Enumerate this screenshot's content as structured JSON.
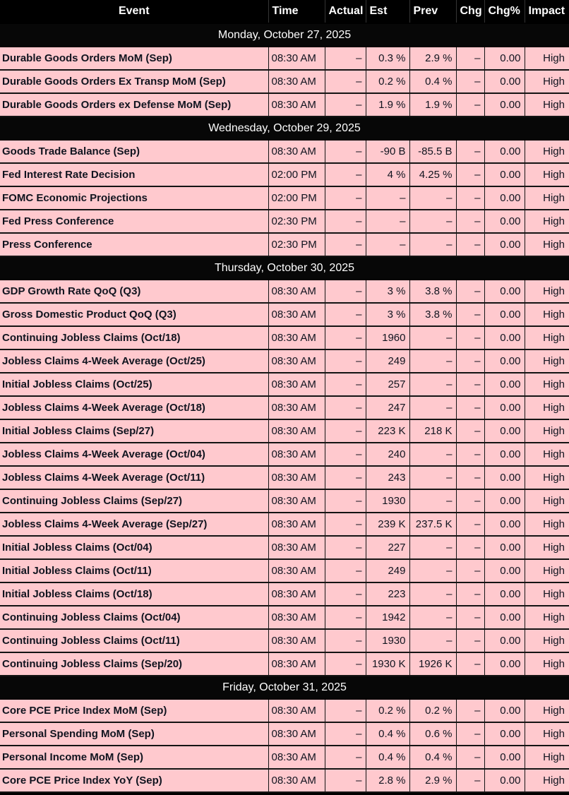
{
  "colors": {
    "header_bg": "#000000",
    "date_band_bg": "#070707",
    "row_bg": "#ffc9ce",
    "row_text": "#10141f",
    "header_text": "#ffffff"
  },
  "table": {
    "columns": [
      {
        "key": "event",
        "label": "Event"
      },
      {
        "key": "time",
        "label": "Time"
      },
      {
        "key": "actual",
        "label": "Actual"
      },
      {
        "key": "est",
        "label": "Est"
      },
      {
        "key": "prev",
        "label": "Prev"
      },
      {
        "key": "chg",
        "label": "Chg"
      },
      {
        "key": "chgpct",
        "label": "Chg%"
      },
      {
        "key": "impact",
        "label": "Impact"
      }
    ],
    "groups": [
      {
        "date": "Monday, October 27, 2025",
        "rows": [
          {
            "event": "Durable Goods Orders MoM (Sep)",
            "time": "08:30 AM",
            "actual": "–",
            "est": "0.3 %",
            "prev": "2.9 %",
            "chg": "–",
            "chgpct": "0.00",
            "impact": "High"
          },
          {
            "event": "Durable Goods Orders Ex Transp MoM (Sep)",
            "time": "08:30 AM",
            "actual": "–",
            "est": "0.2 %",
            "prev": "0.4 %",
            "chg": "–",
            "chgpct": "0.00",
            "impact": "High"
          },
          {
            "event": "Durable Goods Orders ex Defense MoM (Sep)",
            "time": "08:30 AM",
            "actual": "–",
            "est": "1.9 %",
            "prev": "1.9 %",
            "chg": "–",
            "chgpct": "0.00",
            "impact": "High"
          }
        ]
      },
      {
        "date": "Wednesday, October 29, 2025",
        "rows": [
          {
            "event": "Goods Trade Balance (Sep)",
            "time": "08:30 AM",
            "actual": "–",
            "est": "-90 B",
            "prev": "-85.5 B",
            "chg": "–",
            "chgpct": "0.00",
            "impact": "High"
          },
          {
            "event": "Fed Interest Rate Decision",
            "time": "02:00 PM",
            "actual": "–",
            "est": "4 %",
            "prev": "4.25 %",
            "chg": "–",
            "chgpct": "0.00",
            "impact": "High"
          },
          {
            "event": "FOMC Economic Projections",
            "time": "02:00 PM",
            "actual": "–",
            "est": "–",
            "prev": "–",
            "chg": "–",
            "chgpct": "0.00",
            "impact": "High"
          },
          {
            "event": "Fed Press Conference",
            "time": "02:30 PM",
            "actual": "–",
            "est": "–",
            "prev": "–",
            "chg": "–",
            "chgpct": "0.00",
            "impact": "High"
          },
          {
            "event": "Press Conference",
            "time": "02:30 PM",
            "actual": "–",
            "est": "–",
            "prev": "–",
            "chg": "–",
            "chgpct": "0.00",
            "impact": "High"
          }
        ]
      },
      {
        "date": "Thursday, October 30, 2025",
        "rows": [
          {
            "event": "GDP Growth Rate QoQ (Q3)",
            "time": "08:30 AM",
            "actual": "–",
            "est": "3 %",
            "prev": "3.8 %",
            "chg": "–",
            "chgpct": "0.00",
            "impact": "High"
          },
          {
            "event": "Gross Domestic Product QoQ (Q3)",
            "time": "08:30 AM",
            "actual": "–",
            "est": "3 %",
            "prev": "3.8 %",
            "chg": "–",
            "chgpct": "0.00",
            "impact": "High"
          },
          {
            "event": "Continuing Jobless Claims (Oct/18)",
            "time": "08:30 AM",
            "actual": "–",
            "est": "1960",
            "prev": "–",
            "chg": "–",
            "chgpct": "0.00",
            "impact": "High"
          },
          {
            "event": "Jobless Claims 4-Week Average (Oct/25)",
            "time": "08:30 AM",
            "actual": "–",
            "est": "249",
            "prev": "–",
            "chg": "–",
            "chgpct": "0.00",
            "impact": "High"
          },
          {
            "event": "Initial Jobless Claims (Oct/25)",
            "time": "08:30 AM",
            "actual": "–",
            "est": "257",
            "prev": "–",
            "chg": "–",
            "chgpct": "0.00",
            "impact": "High"
          },
          {
            "event": "Jobless Claims 4-Week Average (Oct/18)",
            "time": "08:30 AM",
            "actual": "–",
            "est": "247",
            "prev": "–",
            "chg": "–",
            "chgpct": "0.00",
            "impact": "High"
          },
          {
            "event": "Initial Jobless Claims (Sep/27)",
            "time": "08:30 AM",
            "actual": "–",
            "est": "223 K",
            "prev": "218 K",
            "chg": "–",
            "chgpct": "0.00",
            "impact": "High"
          },
          {
            "event": "Jobless Claims 4-Week Average (Oct/04)",
            "time": "08:30 AM",
            "actual": "–",
            "est": "240",
            "prev": "–",
            "chg": "–",
            "chgpct": "0.00",
            "impact": "High"
          },
          {
            "event": "Jobless Claims 4-Week Average (Oct/11)",
            "time": "08:30 AM",
            "actual": "–",
            "est": "243",
            "prev": "–",
            "chg": "–",
            "chgpct": "0.00",
            "impact": "High"
          },
          {
            "event": "Continuing Jobless Claims (Sep/27)",
            "time": "08:30 AM",
            "actual": "–",
            "est": "1930",
            "prev": "–",
            "chg": "–",
            "chgpct": "0.00",
            "impact": "High"
          },
          {
            "event": "Jobless Claims 4-Week Average (Sep/27)",
            "time": "08:30 AM",
            "actual": "–",
            "est": "239 K",
            "prev": "237.5 K",
            "chg": "–",
            "chgpct": "0.00",
            "impact": "High"
          },
          {
            "event": "Initial Jobless Claims (Oct/04)",
            "time": "08:30 AM",
            "actual": "–",
            "est": "227",
            "prev": "–",
            "chg": "–",
            "chgpct": "0.00",
            "impact": "High"
          },
          {
            "event": "Initial Jobless Claims (Oct/11)",
            "time": "08:30 AM",
            "actual": "–",
            "est": "249",
            "prev": "–",
            "chg": "–",
            "chgpct": "0.00",
            "impact": "High"
          },
          {
            "event": "Initial Jobless Claims (Oct/18)",
            "time": "08:30 AM",
            "actual": "–",
            "est": "223",
            "prev": "–",
            "chg": "–",
            "chgpct": "0.00",
            "impact": "High"
          },
          {
            "event": "Continuing Jobless Claims (Oct/04)",
            "time": "08:30 AM",
            "actual": "–",
            "est": "1942",
            "prev": "–",
            "chg": "–",
            "chgpct": "0.00",
            "impact": "High"
          },
          {
            "event": "Continuing Jobless Claims (Oct/11)",
            "time": "08:30 AM",
            "actual": "–",
            "est": "1930",
            "prev": "–",
            "chg": "–",
            "chgpct": "0.00",
            "impact": "High"
          },
          {
            "event": "Continuing Jobless Claims (Sep/20)",
            "time": "08:30 AM",
            "actual": "–",
            "est": "1930 K",
            "prev": "1926 K",
            "chg": "–",
            "chgpct": "0.00",
            "impact": "High"
          }
        ]
      },
      {
        "date": "Friday, October 31, 2025",
        "rows": [
          {
            "event": "Core PCE Price Index MoM (Sep)",
            "time": "08:30 AM",
            "actual": "–",
            "est": "0.2 %",
            "prev": "0.2 %",
            "chg": "–",
            "chgpct": "0.00",
            "impact": "High"
          },
          {
            "event": "Personal Spending MoM (Sep)",
            "time": "08:30 AM",
            "actual": "–",
            "est": "0.4 %",
            "prev": "0.6 %",
            "chg": "–",
            "chgpct": "0.00",
            "impact": "High"
          },
          {
            "event": "Personal Income MoM (Sep)",
            "time": "08:30 AM",
            "actual": "–",
            "est": "0.4 %",
            "prev": "0.4 %",
            "chg": "–",
            "chgpct": "0.00",
            "impact": "High"
          },
          {
            "event": "Core PCE Price Index YoY (Sep)",
            "time": "08:30 AM",
            "actual": "–",
            "est": "2.8 %",
            "prev": "2.9 %",
            "chg": "–",
            "chgpct": "0.00",
            "impact": "High"
          }
        ]
      }
    ]
  }
}
